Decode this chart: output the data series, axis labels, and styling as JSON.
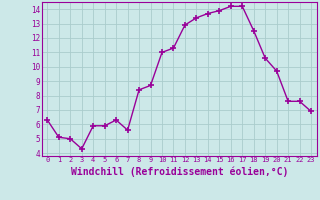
{
  "x": [
    0,
    1,
    2,
    3,
    4,
    5,
    6,
    7,
    8,
    9,
    10,
    11,
    12,
    13,
    14,
    15,
    16,
    17,
    18,
    19,
    20,
    21,
    22,
    23
  ],
  "y": [
    6.3,
    5.1,
    5.0,
    4.3,
    5.9,
    5.9,
    6.3,
    5.6,
    8.4,
    8.7,
    11.0,
    11.3,
    12.9,
    13.4,
    13.7,
    13.9,
    14.2,
    14.2,
    12.5,
    10.6,
    9.7,
    7.6,
    7.6,
    6.9
  ],
  "line_color": "#990099",
  "marker": "+",
  "marker_size": 4,
  "line_width": 1.0,
  "xlabel": "Windchill (Refroidissement éolien,°C)",
  "xlabel_fontsize": 7,
  "ylim": [
    3.8,
    14.5
  ],
  "xlim": [
    -0.5,
    23.5
  ],
  "yticks": [
    4,
    5,
    6,
    7,
    8,
    9,
    10,
    11,
    12,
    13,
    14
  ],
  "xticks": [
    0,
    1,
    2,
    3,
    4,
    5,
    6,
    7,
    8,
    9,
    10,
    11,
    12,
    13,
    14,
    15,
    16,
    17,
    18,
    19,
    20,
    21,
    22,
    23
  ],
  "bg_color": "#cce8e8",
  "grid_color": "#aacccc",
  "tick_color": "#990099",
  "xlabel_color": "#990099",
  "border_color": "#990099"
}
